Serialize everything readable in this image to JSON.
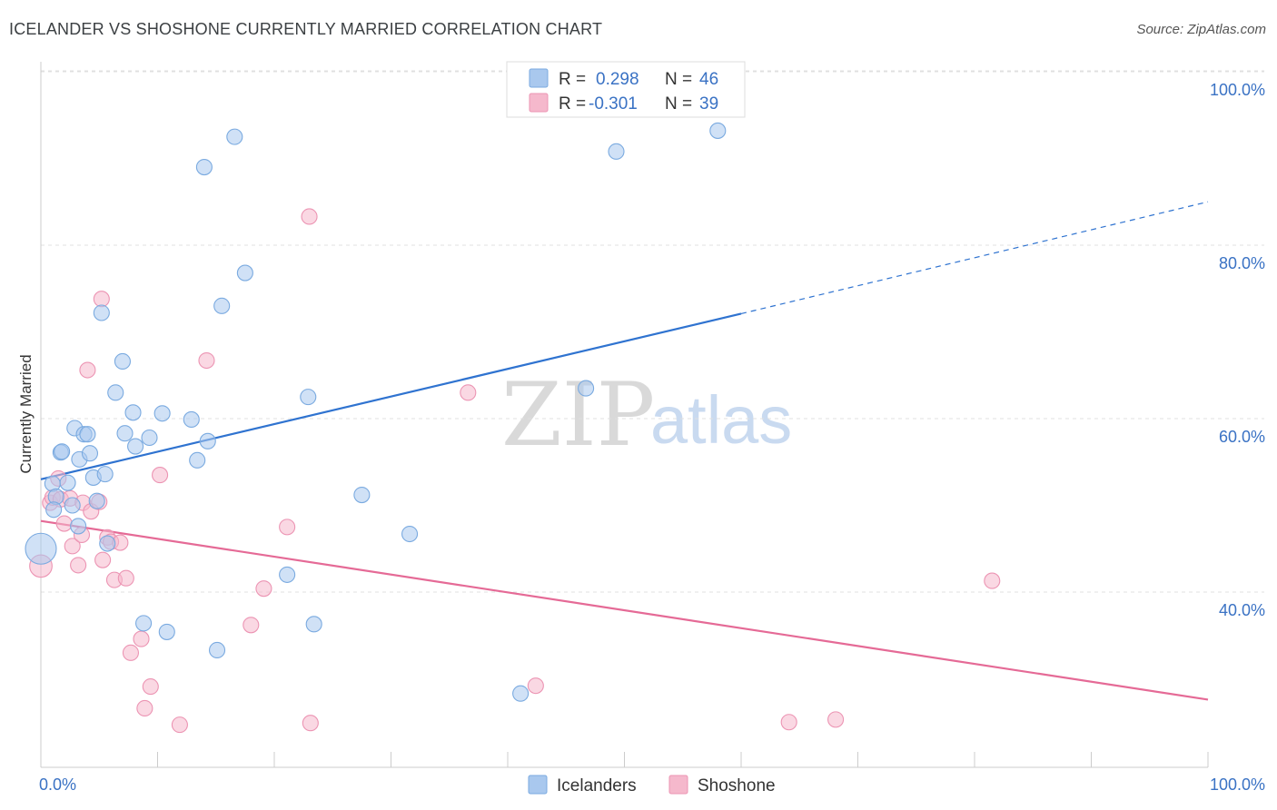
{
  "title": "ICELANDER VS SHOSHONE CURRENTLY MARRIED CORRELATION CHART",
  "source": "Source: ZipAtlas.com",
  "watermark": {
    "zip": "ZIP",
    "atlas": "atlas"
  },
  "legend": {
    "rows": [
      {
        "r_label": "R =",
        "r_value": "0.298",
        "n_label": "N =",
        "n_value": "46"
      },
      {
        "r_label": "R =",
        "r_value": "-0.301",
        "n_label": "N =",
        "n_value": "39"
      }
    ]
  },
  "colors": {
    "blue_fill": "#a9c8ee",
    "blue_stroke": "#7aaae0",
    "blue_line": "#2f73d0",
    "pink_fill": "#f5b8cc",
    "pink_stroke": "#ec94b3",
    "pink_line": "#e56a96",
    "accent_text": "#3a72c4"
  },
  "chart_data": {
    "type": "scatter",
    "title": "ICELANDER VS SHOSHONE CURRENTLY MARRIED CORRELATION CHART",
    "xlabel": "",
    "ylabel": "Currently Married",
    "xlim": [
      0,
      100
    ],
    "ylim": [
      18,
      100
    ],
    "x_tick_labels": [
      "0.0%",
      "100.0%"
    ],
    "y_ticks": [
      40,
      60,
      80,
      100
    ],
    "y_tick_labels": [
      "40.0%",
      "60.0%",
      "80.0%",
      "100.0%"
    ],
    "series": [
      {
        "name": "Icelanders",
        "color": "#a9c8ee",
        "trend": {
          "x0": 0,
          "y0": 53.0,
          "x1": 60,
          "y1": 72.1,
          "dash_x1": 100,
          "dash_y1": 85.0
        },
        "points": [
          [
            0.0,
            45.0,
            3
          ],
          [
            1.0,
            52.5,
            1
          ],
          [
            1.3,
            51.0,
            1
          ],
          [
            1.1,
            49.5,
            1
          ],
          [
            1.7,
            56.1,
            1
          ],
          [
            1.8,
            56.2,
            1
          ],
          [
            2.3,
            52.6,
            1
          ],
          [
            2.7,
            50.0,
            1
          ],
          [
            2.9,
            58.9,
            1
          ],
          [
            3.2,
            47.6,
            1
          ],
          [
            3.3,
            55.3,
            1
          ],
          [
            3.7,
            58.2,
            1
          ],
          [
            4.0,
            58.2,
            1
          ],
          [
            4.2,
            56.0,
            1
          ],
          [
            4.5,
            53.2,
            1
          ],
          [
            4.8,
            50.5,
            1
          ],
          [
            5.5,
            53.6,
            1
          ],
          [
            5.7,
            45.6,
            1
          ],
          [
            5.2,
            72.2,
            1
          ],
          [
            6.4,
            63.0,
            1
          ],
          [
            7.0,
            66.6,
            1
          ],
          [
            7.2,
            58.3,
            1
          ],
          [
            7.9,
            60.7,
            1
          ],
          [
            8.1,
            56.8,
            1
          ],
          [
            8.8,
            36.4,
            1
          ],
          [
            9.3,
            57.8,
            1
          ],
          [
            10.4,
            60.6,
            1
          ],
          [
            10.8,
            35.4,
            1
          ],
          [
            12.9,
            59.9,
            1
          ],
          [
            13.4,
            55.2,
            1
          ],
          [
            14.0,
            89.0,
            1
          ],
          [
            14.3,
            57.4,
            1
          ],
          [
            15.1,
            33.3,
            1
          ],
          [
            15.5,
            73.0,
            1
          ],
          [
            16.6,
            92.5,
            1
          ],
          [
            17.5,
            76.8,
            1
          ],
          [
            21.1,
            42.0,
            1
          ],
          [
            22.9,
            62.5,
            1
          ],
          [
            23.4,
            36.3,
            1
          ],
          [
            27.5,
            51.2,
            1
          ],
          [
            31.6,
            46.7,
            1
          ],
          [
            41.1,
            28.3,
            1
          ],
          [
            46.7,
            63.5,
            1
          ],
          [
            49.3,
            90.8,
            1
          ],
          [
            58.0,
            93.2,
            1
          ]
        ]
      },
      {
        "name": "Shoshone",
        "color": "#f5b8cc",
        "trend": {
          "x0": 0,
          "y0": 48.2,
          "x1": 100,
          "y1": 27.6
        },
        "points": [
          [
            0.0,
            43.0,
            2
          ],
          [
            0.8,
            50.3,
            1
          ],
          [
            1.0,
            50.9,
            1
          ],
          [
            1.5,
            53.1,
            1
          ],
          [
            1.7,
            50.7,
            1
          ],
          [
            2.0,
            47.9,
            1
          ],
          [
            2.5,
            50.8,
            1
          ],
          [
            2.7,
            45.3,
            1
          ],
          [
            3.2,
            43.1,
            1
          ],
          [
            3.5,
            46.6,
            1
          ],
          [
            3.6,
            50.3,
            1
          ],
          [
            4.0,
            65.6,
            1
          ],
          [
            4.3,
            49.3,
            1
          ],
          [
            5.0,
            50.4,
            1
          ],
          [
            5.2,
            73.8,
            1
          ],
          [
            5.3,
            43.7,
            1
          ],
          [
            5.7,
            46.3,
            1
          ],
          [
            6.0,
            45.8,
            1
          ],
          [
            6.3,
            41.4,
            1
          ],
          [
            6.8,
            45.7,
            1
          ],
          [
            7.3,
            41.6,
            1
          ],
          [
            7.7,
            33.0,
            1
          ],
          [
            8.6,
            34.6,
            1
          ],
          [
            8.9,
            26.6,
            1
          ],
          [
            9.4,
            29.1,
            1
          ],
          [
            10.2,
            53.5,
            1
          ],
          [
            11.9,
            24.7,
            1
          ],
          [
            14.2,
            66.7,
            1
          ],
          [
            18.0,
            36.2,
            1
          ],
          [
            19.1,
            40.4,
            1
          ],
          [
            21.1,
            47.5,
            1
          ],
          [
            23.0,
            83.3,
            1
          ],
          [
            23.1,
            24.9,
            1
          ],
          [
            36.6,
            63.0,
            1
          ],
          [
            42.4,
            29.2,
            1
          ],
          [
            64.1,
            25.0,
            1
          ],
          [
            68.1,
            25.3,
            1
          ],
          [
            81.5,
            41.3,
            1
          ]
        ]
      }
    ],
    "legend": [
      "Icelanders",
      "Shoshone"
    ],
    "grid": true
  }
}
